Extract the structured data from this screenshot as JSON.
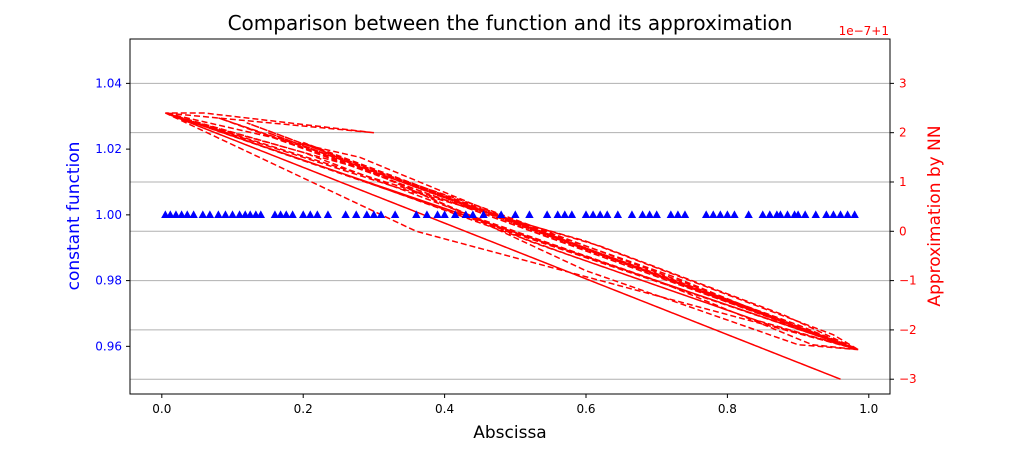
{
  "chart_data": {
    "type": "line",
    "title": "Comparison between the function and its approximation",
    "xlabel": "Abscissa",
    "ylabel_left": "constant function",
    "ylabel_right": "Approximation by NN",
    "right_offset_text": "1e−7+1",
    "colors": {
      "left": "#0000ff",
      "right": "#ff0000",
      "grid": "#b0b0b0"
    },
    "grid": "horizontal",
    "x": {
      "lim": [
        -0.045,
        1.03
      ],
      "ticks": [
        0.0,
        0.2,
        0.4,
        0.6,
        0.8,
        1.0
      ],
      "tick_labels": [
        "0.0",
        "0.2",
        "0.4",
        "0.6",
        "0.8",
        "1.0"
      ]
    },
    "y_left": {
      "lim": [
        0.9455,
        1.0535
      ],
      "ticks": [
        0.96,
        0.98,
        1.0,
        1.02,
        1.04
      ],
      "tick_labels": [
        "0.96",
        "0.98",
        "1.00",
        "1.02",
        "1.04"
      ]
    },
    "y_right": {
      "lim": [
        -3.3,
        3.9
      ],
      "ticks": [
        -3,
        -2,
        -1,
        0,
        1,
        2,
        3
      ],
      "tick_labels": [
        "−3",
        "−2",
        "−1",
        "0",
        "1",
        "2",
        "3"
      ]
    },
    "series": [
      {
        "axis": "left",
        "style": "triangle-markers",
        "x": [
          0.005,
          0.012,
          0.02,
          0.028,
          0.036,
          0.045,
          0.058,
          0.068,
          0.08,
          0.09,
          0.1,
          0.11,
          0.118,
          0.125,
          0.133,
          0.14,
          0.16,
          0.168,
          0.176,
          0.185,
          0.2,
          0.21,
          0.22,
          0.235,
          0.26,
          0.275,
          0.29,
          0.3,
          0.31,
          0.33,
          0.36,
          0.375,
          0.39,
          0.4,
          0.415,
          0.43,
          0.44,
          0.455,
          0.48,
          0.5,
          0.52,
          0.545,
          0.56,
          0.57,
          0.58,
          0.6,
          0.61,
          0.62,
          0.63,
          0.645,
          0.665,
          0.68,
          0.69,
          0.7,
          0.72,
          0.73,
          0.74,
          0.77,
          0.78,
          0.79,
          0.8,
          0.81,
          0.83,
          0.85,
          0.86,
          0.87,
          0.875,
          0.885,
          0.895,
          0.9,
          0.91,
          0.925,
          0.94,
          0.95,
          0.96,
          0.97,
          0.98
        ],
        "y": 1.0
      },
      {
        "axis": "right",
        "style": "dashed-line",
        "note": "Approximation values, order as plotted (x unsorted)",
        "x": [
          0.005,
          0.96,
          0.005,
          0.06,
          0.3,
          0.005,
          0.5,
          0.985,
          0.005,
          0.2,
          0.45,
          0.7,
          0.92,
          0.985,
          0.9,
          0.6,
          0.3,
          0.05,
          0.005,
          0.28,
          0.55,
          0.82,
          0.985,
          0.1,
          0.4,
          0.65,
          0.9,
          0.985,
          0.005,
          0.35,
          0.62,
          0.88,
          0.985,
          0.15,
          0.5,
          0.8,
          0.975,
          0.005,
          0.25,
          0.58,
          0.86,
          0.985,
          0.005,
          0.33,
          0.6,
          0.95,
          0.985,
          0.12,
          0.42,
          0.72,
          0.96,
          0.985,
          0.005,
          0.36,
          0.985,
          0.2,
          0.52,
          0.84,
          0.985,
          0.08,
          0.45,
          0.75,
          0.985
        ],
        "y": [
          2.4,
          -3.0,
          2.4,
          2.4,
          2.0,
          2.4,
          -0.05,
          -2.4,
          2.4,
          1.6,
          0.25,
          -1.0,
          -2.3,
          -2.4,
          -2.3,
          -0.8,
          1.2,
          2.2,
          2.4,
          1.5,
          -0.1,
          -1.5,
          -2.4,
          2.2,
          0.7,
          -0.6,
          -1.9,
          -2.4,
          2.4,
          0.85,
          -0.3,
          -1.7,
          -2.4,
          2.0,
          0.15,
          -1.4,
          -2.35,
          2.4,
          1.2,
          -0.5,
          -1.9,
          -2.4,
          2.4,
          0.9,
          -0.2,
          -2.1,
          -2.4,
          2.2,
          0.6,
          -0.9,
          -2.3,
          -2.4,
          2.4,
          0.0,
          -2.4,
          1.8,
          -0.2,
          -1.8,
          -2.4,
          2.3,
          0.5,
          -1.1,
          -2.4
        ]
      }
    ]
  }
}
